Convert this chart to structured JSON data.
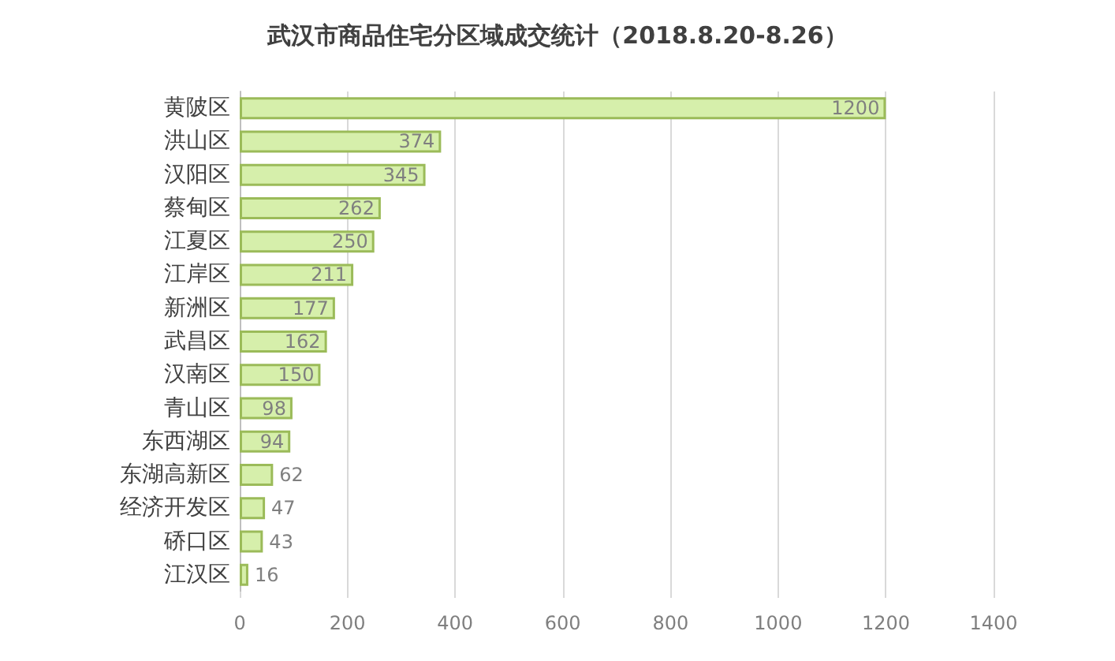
{
  "chart_data": {
    "type": "bar",
    "orientation": "horizontal",
    "title": "武汉市商品住宅分区域成交统计（2018.8.20-8.26）",
    "categories": [
      "黄陂区",
      "洪山区",
      "汉阳区",
      "蔡甸区",
      "江夏区",
      "江岸区",
      "新洲区",
      "武昌区",
      "汉南区",
      "青山区",
      "东西湖区",
      "东湖高新区",
      "经济开发区",
      "硚口区",
      "江汉区"
    ],
    "values": [
      1200,
      374,
      345,
      262,
      250,
      211,
      177,
      162,
      150,
      98,
      94,
      62,
      47,
      43,
      16
    ],
    "color": "#d6efab",
    "xlim": [
      0,
      1400
    ],
    "xticks": [
      0,
      200,
      400,
      600,
      800,
      1000,
      1200,
      1400
    ],
    "grid": "x",
    "data_labels": true
  }
}
